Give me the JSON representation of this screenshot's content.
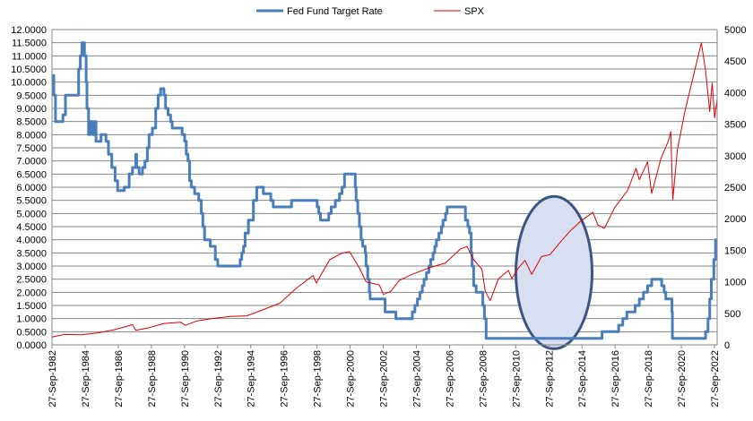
{
  "chart_data": {
    "type": "line",
    "title": "",
    "legend": {
      "placement": "top-center",
      "entries": [
        {
          "name": "Fed Fund Target Rate",
          "color": "#4a7ebb"
        },
        {
          "name": "SPX",
          "color": "#e00000"
        }
      ]
    },
    "x_axis": {
      "type": "date",
      "range": [
        1982.74,
        2022.9
      ],
      "tick_labels": [
        "27-Sep-1982",
        "27-Sep-1984",
        "27-Sep-1986",
        "27-Sep-1988",
        "27-Sep-1990",
        "27-Sep-1992",
        "27-Sep-1994",
        "27-Sep-1996",
        "27-Sep-1998",
        "27-Sep-2000",
        "27-Sep-2002",
        "27-Sep-2004",
        "27-Sep-2006",
        "27-Sep-2008",
        "27-Sep-2010",
        "27-Sep-2012",
        "27-Sep-2014",
        "27-Sep-2016",
        "27-Sep-2018",
        "27-Sep-2020",
        "27-Sep-2022"
      ],
      "tick_values": [
        1982.74,
        1984.74,
        1986.74,
        1988.74,
        1990.74,
        1992.74,
        1994.74,
        1996.74,
        1998.74,
        2000.74,
        2002.74,
        2004.74,
        2006.74,
        2008.74,
        2010.74,
        2012.74,
        2014.74,
        2016.74,
        2018.74,
        2020.74,
        2022.74
      ]
    },
    "y_left": {
      "label": "",
      "range": [
        0,
        12
      ],
      "tick_labels": [
        "0.0000",
        "0.5000",
        "1.0000",
        "1.5000",
        "2.0000",
        "2.5000",
        "3.0000",
        "3.5000",
        "4.0000",
        "4.5000",
        "5.0000",
        "5.5000",
        "6.0000",
        "6.5000",
        "7.0000",
        "7.5000",
        "8.0000",
        "8.5000",
        "9.0000",
        "9.5000",
        "10.0000",
        "10.5000",
        "11.0000",
        "11.5000",
        "12.0000"
      ],
      "gridlines": true
    },
    "y_right": {
      "label": "",
      "range": [
        0,
        5000
      ],
      "tick_labels": [
        "0",
        "500",
        "1000",
        "1500",
        "2000",
        "2500",
        "3000",
        "3500",
        "4000",
        "4500",
        "5000"
      ]
    },
    "series": [
      {
        "name": "Fed Fund Target Rate",
        "axis": "left",
        "style": "step",
        "color": "#4a7ebb",
        "points": [
          [
            1982.74,
            10.25
          ],
          [
            1982.85,
            9.5
          ],
          [
            1982.95,
            8.5
          ],
          [
            1983.4,
            8.75
          ],
          [
            1983.55,
            9.5
          ],
          [
            1983.8,
            9.5
          ],
          [
            1984.1,
            9.5
          ],
          [
            1984.35,
            10.5
          ],
          [
            1984.45,
            11.0
          ],
          [
            1984.55,
            11.5
          ],
          [
            1984.7,
            11.0
          ],
          [
            1984.8,
            10.0
          ],
          [
            1984.85,
            9.0
          ],
          [
            1984.95,
            8.0
          ],
          [
            1985.05,
            8.5
          ],
          [
            1985.2,
            8.0
          ],
          [
            1985.3,
            8.5
          ],
          [
            1985.4,
            7.75
          ],
          [
            1985.7,
            8.0
          ],
          [
            1986.0,
            7.75
          ],
          [
            1986.15,
            7.25
          ],
          [
            1986.35,
            6.75
          ],
          [
            1986.55,
            6.25
          ],
          [
            1986.7,
            5.875
          ],
          [
            1987.1,
            6.0
          ],
          [
            1987.4,
            6.5
          ],
          [
            1987.6,
            6.75
          ],
          [
            1987.8,
            7.25
          ],
          [
            1987.85,
            6.75
          ],
          [
            1988.0,
            6.5
          ],
          [
            1988.2,
            6.75
          ],
          [
            1988.35,
            7.0
          ],
          [
            1988.5,
            7.5
          ],
          [
            1988.6,
            8.0
          ],
          [
            1988.8,
            8.25
          ],
          [
            1989.0,
            9.0
          ],
          [
            1989.15,
            9.5
          ],
          [
            1989.3,
            9.75
          ],
          [
            1989.5,
            9.5
          ],
          [
            1989.6,
            9.0
          ],
          [
            1989.75,
            8.75
          ],
          [
            1989.9,
            8.5
          ],
          [
            1990.0,
            8.25
          ],
          [
            1990.6,
            8.0
          ],
          [
            1990.75,
            7.75
          ],
          [
            1990.85,
            7.25
          ],
          [
            1990.95,
            7.0
          ],
          [
            1991.05,
            6.25
          ],
          [
            1991.15,
            6.0
          ],
          [
            1991.35,
            5.75
          ],
          [
            1991.6,
            5.5
          ],
          [
            1991.75,
            5.0
          ],
          [
            1991.85,
            4.5
          ],
          [
            1991.95,
            4.0
          ],
          [
            1992.3,
            3.75
          ],
          [
            1992.6,
            3.25
          ],
          [
            1992.75,
            3.0
          ],
          [
            1994.1,
            3.25
          ],
          [
            1994.2,
            3.5
          ],
          [
            1994.3,
            3.75
          ],
          [
            1994.4,
            4.25
          ],
          [
            1994.6,
            4.75
          ],
          [
            1994.9,
            5.5
          ],
          [
            1995.1,
            6.0
          ],
          [
            1995.5,
            5.75
          ],
          [
            1995.95,
            5.5
          ],
          [
            1996.1,
            5.25
          ],
          [
            1997.2,
            5.5
          ],
          [
            1998.75,
            5.25
          ],
          [
            1998.85,
            5.0
          ],
          [
            1998.95,
            4.75
          ],
          [
            1999.45,
            5.0
          ],
          [
            1999.6,
            5.25
          ],
          [
            1999.85,
            5.5
          ],
          [
            2000.1,
            5.75
          ],
          [
            2000.25,
            6.0
          ],
          [
            2000.4,
            6.5
          ],
          [
            2001.05,
            6.0
          ],
          [
            2001.1,
            5.5
          ],
          [
            2001.2,
            5.0
          ],
          [
            2001.3,
            4.5
          ],
          [
            2001.4,
            4.0
          ],
          [
            2001.5,
            3.75
          ],
          [
            2001.65,
            3.5
          ],
          [
            2001.7,
            3.0
          ],
          [
            2001.8,
            2.5
          ],
          [
            2001.9,
            2.0
          ],
          [
            2001.95,
            1.75
          ],
          [
            2002.85,
            1.25
          ],
          [
            2003.5,
            1.0
          ],
          [
            2004.5,
            1.25
          ],
          [
            2004.65,
            1.5
          ],
          [
            2004.8,
            1.75
          ],
          [
            2004.95,
            2.0
          ],
          [
            2005.1,
            2.25
          ],
          [
            2005.2,
            2.5
          ],
          [
            2005.35,
            2.75
          ],
          [
            2005.5,
            3.0
          ],
          [
            2005.6,
            3.25
          ],
          [
            2005.75,
            3.5
          ],
          [
            2005.85,
            3.75
          ],
          [
            2005.95,
            4.0
          ],
          [
            2006.1,
            4.25
          ],
          [
            2006.25,
            4.5
          ],
          [
            2006.35,
            4.75
          ],
          [
            2006.5,
            5.0
          ],
          [
            2006.6,
            5.25
          ],
          [
            2007.7,
            4.75
          ],
          [
            2007.85,
            4.5
          ],
          [
            2007.95,
            4.25
          ],
          [
            2008.05,
            3.5
          ],
          [
            2008.1,
            3.0
          ],
          [
            2008.2,
            2.25
          ],
          [
            2008.35,
            2.0
          ],
          [
            2008.75,
            1.5
          ],
          [
            2008.85,
            1.0
          ],
          [
            2008.95,
            0.25
          ],
          [
            2015.95,
            0.5
          ],
          [
            2016.95,
            0.75
          ],
          [
            2017.2,
            1.0
          ],
          [
            2017.45,
            1.25
          ],
          [
            2017.95,
            1.5
          ],
          [
            2018.2,
            1.75
          ],
          [
            2018.45,
            2.0
          ],
          [
            2018.7,
            2.25
          ],
          [
            2018.95,
            2.5
          ],
          [
            2019.55,
            2.25
          ],
          [
            2019.7,
            2.0
          ],
          [
            2019.8,
            1.75
          ],
          [
            2020.17,
            1.25
          ],
          [
            2020.2,
            0.25
          ],
          [
            2022.2,
            0.5
          ],
          [
            2022.35,
            1.0
          ],
          [
            2022.45,
            1.75
          ],
          [
            2022.55,
            2.5
          ],
          [
            2022.7,
            3.25
          ],
          [
            2022.8,
            4.0
          ],
          [
            2022.9,
            4.0
          ]
        ]
      },
      {
        "name": "SPX",
        "axis": "right",
        "style": "line",
        "color": "#e00000",
        "points": [
          [
            1982.74,
            125
          ],
          [
            1983.5,
            165
          ],
          [
            1984.5,
            160
          ],
          [
            1985.5,
            190
          ],
          [
            1986.5,
            240
          ],
          [
            1987.6,
            320
          ],
          [
            1987.8,
            230
          ],
          [
            1988.5,
            265
          ],
          [
            1989.5,
            340
          ],
          [
            1990.5,
            360
          ],
          [
            1990.8,
            310
          ],
          [
            1991.5,
            380
          ],
          [
            1992.5,
            420
          ],
          [
            1993.5,
            450
          ],
          [
            1994.5,
            460
          ],
          [
            1995.5,
            560
          ],
          [
            1996.5,
            660
          ],
          [
            1997.5,
            900
          ],
          [
            1998.5,
            1100
          ],
          [
            1998.7,
            980
          ],
          [
            1999.5,
            1350
          ],
          [
            2000.2,
            1450
          ],
          [
            2000.7,
            1480
          ],
          [
            2001.3,
            1220
          ],
          [
            2001.7,
            1000
          ],
          [
            2002.5,
            950
          ],
          [
            2002.75,
            800
          ],
          [
            2003.2,
            850
          ],
          [
            2003.7,
            1020
          ],
          [
            2004.5,
            1120
          ],
          [
            2005.5,
            1220
          ],
          [
            2006.5,
            1300
          ],
          [
            2007.4,
            1520
          ],
          [
            2007.8,
            1560
          ],
          [
            2008.2,
            1350
          ],
          [
            2008.7,
            1200
          ],
          [
            2008.9,
            850
          ],
          [
            2009.2,
            700
          ],
          [
            2009.7,
            1050
          ],
          [
            2010.3,
            1180
          ],
          [
            2010.5,
            1050
          ],
          [
            2010.9,
            1220
          ],
          [
            2011.3,
            1340
          ],
          [
            2011.7,
            1120
          ],
          [
            2012.3,
            1400
          ],
          [
            2012.8,
            1430
          ],
          [
            2013.5,
            1650
          ],
          [
            2014.0,
            1800
          ],
          [
            2014.7,
            1970
          ],
          [
            2015.4,
            2100
          ],
          [
            2015.7,
            1900
          ],
          [
            2016.1,
            1850
          ],
          [
            2016.7,
            2170
          ],
          [
            2017.5,
            2450
          ],
          [
            2018.0,
            2800
          ],
          [
            2018.2,
            2620
          ],
          [
            2018.7,
            2900
          ],
          [
            2018.95,
            2400
          ],
          [
            2019.5,
            2950
          ],
          [
            2019.95,
            3230
          ],
          [
            2020.1,
            3380
          ],
          [
            2020.22,
            2300
          ],
          [
            2020.5,
            3100
          ],
          [
            2020.95,
            3700
          ],
          [
            2021.5,
            4300
          ],
          [
            2021.95,
            4790
          ],
          [
            2022.2,
            4350
          ],
          [
            2022.45,
            3700
          ],
          [
            2022.6,
            4150
          ],
          [
            2022.75,
            3600
          ],
          [
            2022.9,
            3900
          ]
        ]
      }
    ],
    "annotations": [
      {
        "type": "ellipse",
        "center": [
          2013.05,
          2.75
        ],
        "semi_axes_x_years": 2.3,
        "semi_axes_y_rate": 2.9,
        "fill": "#d7dff0",
        "stroke": "#3d5585"
      }
    ]
  }
}
